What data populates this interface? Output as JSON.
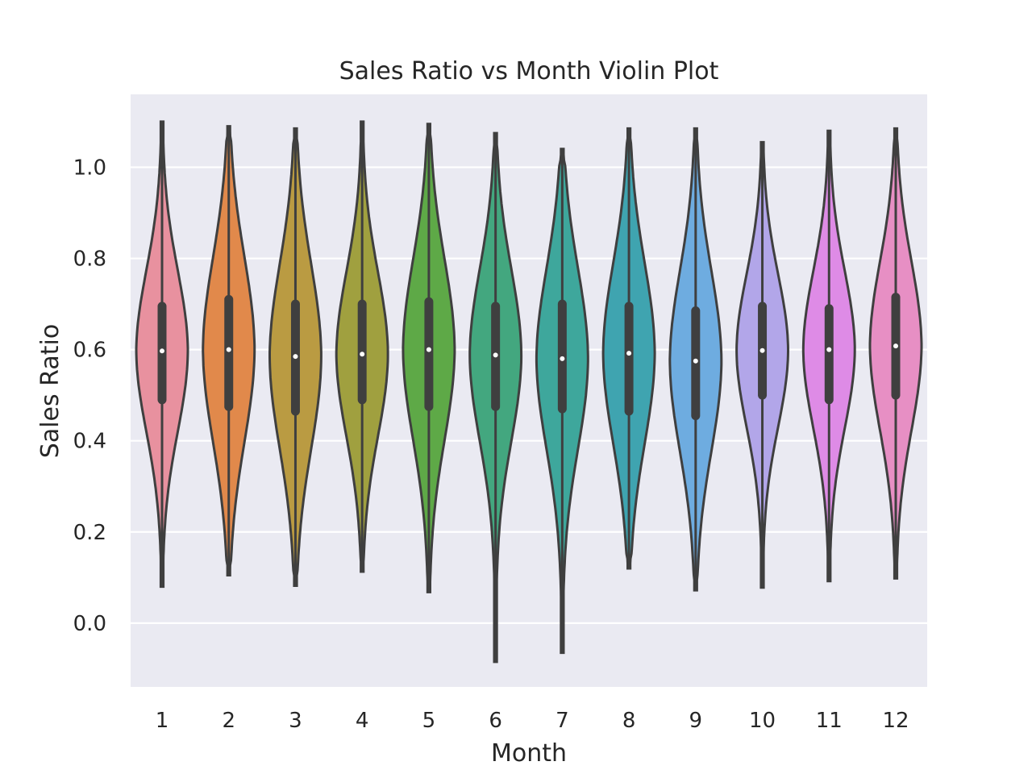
{
  "chart_data": {
    "type": "violin",
    "title": "Sales Ratio vs Month Violin Plot",
    "xlabel": "Month",
    "ylabel": "Sales Ratio",
    "ylim": [
      -0.14,
      1.16
    ],
    "yticks": [
      "0.0",
      "0.2",
      "0.4",
      "0.6",
      "0.8",
      "1.0"
    ],
    "yticks_values": [
      0.0,
      0.2,
      0.4,
      0.6,
      0.8,
      1.0
    ],
    "grid": true,
    "background": "#eaeaf2",
    "categories": [
      "1",
      "2",
      "3",
      "4",
      "5",
      "6",
      "7",
      "8",
      "9",
      "10",
      "11",
      "12"
    ],
    "series": [
      {
        "category": "1",
        "color": "#e8919f",
        "min": 0.08,
        "max": 1.1,
        "q1": 0.49,
        "median": 0.597,
        "q3": 0.695
      },
      {
        "category": "2",
        "color": "#e1894b",
        "min": 0.105,
        "max": 1.09,
        "q1": 0.475,
        "median": 0.6,
        "q3": 0.71
      },
      {
        "category": "3",
        "color": "#ba9b42",
        "min": 0.082,
        "max": 1.085,
        "q1": 0.465,
        "median": 0.585,
        "q3": 0.7
      },
      {
        "category": "4",
        "color": "#a0a03f",
        "min": 0.113,
        "max": 1.1,
        "q1": 0.49,
        "median": 0.59,
        "q3": 0.7
      },
      {
        "category": "5",
        "color": "#5ea947",
        "min": 0.068,
        "max": 1.095,
        "q1": 0.475,
        "median": 0.6,
        "q3": 0.705
      },
      {
        "category": "6",
        "color": "#43a77f",
        "min": -0.085,
        "max": 1.075,
        "q1": 0.475,
        "median": 0.588,
        "q3": 0.695
      },
      {
        "category": "7",
        "color": "#3ea79c",
        "min": -0.065,
        "max": 1.04,
        "q1": 0.47,
        "median": 0.58,
        "q3": 0.7
      },
      {
        "category": "8",
        "color": "#3fa4b0",
        "min": 0.12,
        "max": 1.085,
        "q1": 0.465,
        "median": 0.592,
        "q3": 0.695
      },
      {
        "category": "9",
        "color": "#6eace0",
        "min": 0.072,
        "max": 1.085,
        "q1": 0.455,
        "median": 0.575,
        "q3": 0.685
      },
      {
        "category": "10",
        "color": "#b2a6e9",
        "min": 0.078,
        "max": 1.055,
        "q1": 0.5,
        "median": 0.598,
        "q3": 0.695
      },
      {
        "category": "11",
        "color": "#de8be6",
        "min": 0.092,
        "max": 1.08,
        "q1": 0.49,
        "median": 0.6,
        "q3": 0.69
      },
      {
        "category": "12",
        "color": "#e78fc4",
        "min": 0.098,
        "max": 1.085,
        "q1": 0.5,
        "median": 0.608,
        "q3": 0.715
      }
    ]
  }
}
